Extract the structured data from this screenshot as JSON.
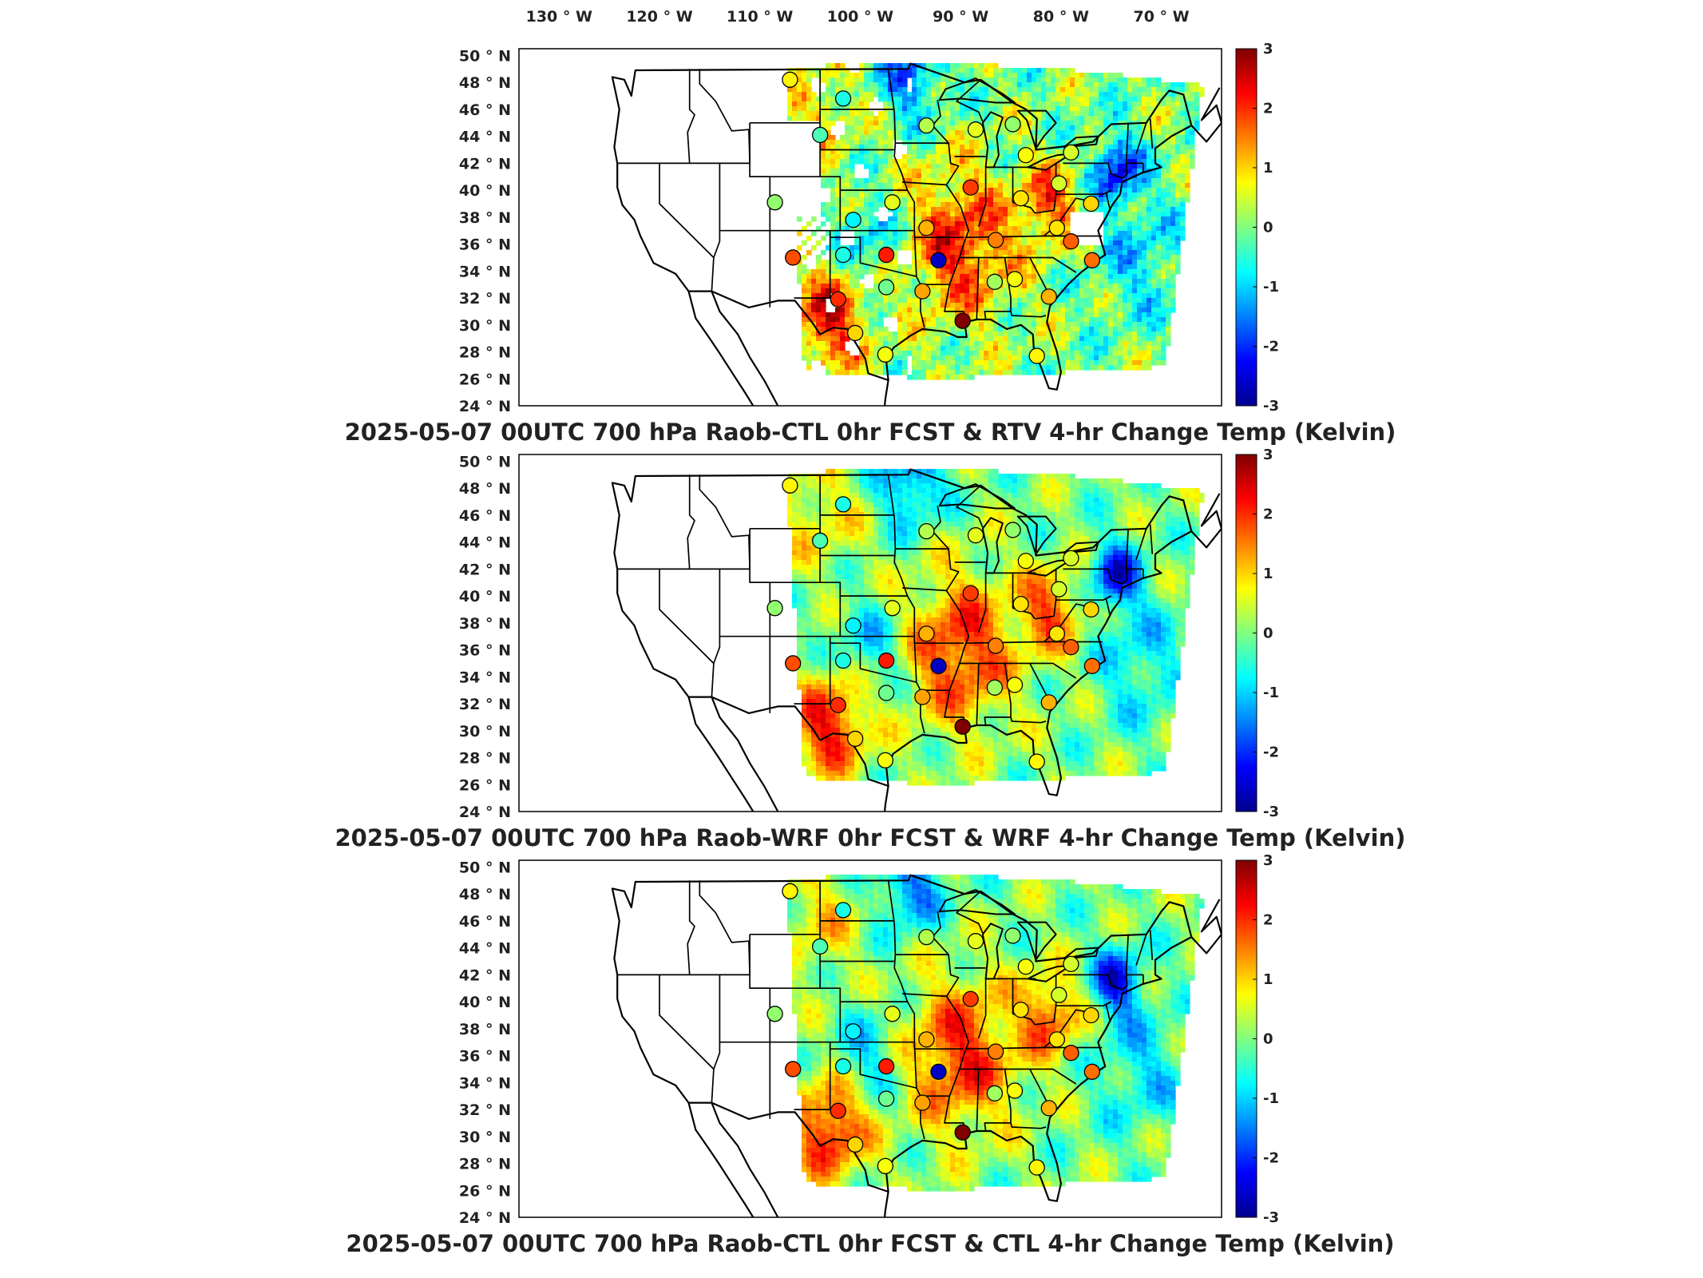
{
  "lon_labels": [
    "130",
    "120",
    "110",
    "100",
    "90",
    "80",
    "70"
  ],
  "lon_suffix": "W",
  "lat_labels": [
    "50",
    "48",
    "46",
    "44",
    "42",
    "40",
    "38",
    "36",
    "34",
    "32",
    "30",
    "28",
    "26",
    "24"
  ],
  "lat_suffix": "N",
  "degree_symbol": "°",
  "colorbar": {
    "ticks": [
      "3",
      "2",
      "1",
      "0",
      "-1",
      "-2",
      "-3"
    ],
    "colormap": "jet",
    "min": -3,
    "max": 3
  },
  "panels": [
    {
      "title": "2025-05-07 00UTC 700 hPa Raob-CTL 0hr FCST & RTV 4-hr Change Temp (Kelvin)",
      "field": "RTV 4-hr change (retrieval, with data gaps)"
    },
    {
      "title": "2025-05-07 00UTC 700 hPa Raob-WRF 0hr FCST & WRF 4-hr Change Temp (Kelvin)",
      "field": "WRF 4-hr change"
    },
    {
      "title": "2025-05-07 00UTC 700 hPa Raob-CTL 0hr FCST & CTL 4-hr Change Temp (Kelvin)",
      "field": "CTL 4-hr change"
    }
  ],
  "stations": [
    {
      "lon": -107.0,
      "lat": 48.2,
      "v": 0.8
    },
    {
      "lon": -101.7,
      "lat": 46.8,
      "v": -0.6
    },
    {
      "lon": -104.0,
      "lat": 44.1,
      "v": -0.3
    },
    {
      "lon": -93.4,
      "lat": 44.8,
      "v": 0.3
    },
    {
      "lon": -88.5,
      "lat": 44.5,
      "v": 0.6
    },
    {
      "lon": -84.8,
      "lat": 44.9,
      "v": 0.1
    },
    {
      "lon": -83.5,
      "lat": 42.6,
      "v": 0.7
    },
    {
      "lon": -79.0,
      "lat": 42.8,
      "v": 0.5
    },
    {
      "lon": -108.5,
      "lat": 39.1,
      "v": 0.1
    },
    {
      "lon": -100.7,
      "lat": 37.8,
      "v": -0.8
    },
    {
      "lon": -96.8,
      "lat": 39.1,
      "v": 0.6
    },
    {
      "lon": -89.0,
      "lat": 40.2,
      "v": 1.9
    },
    {
      "lon": -84.0,
      "lat": 39.4,
      "v": 0.9
    },
    {
      "lon": -80.2,
      "lat": 40.5,
      "v": 0.5
    },
    {
      "lon": -93.4,
      "lat": 37.2,
      "v": 1.2
    },
    {
      "lon": -86.5,
      "lat": 36.3,
      "v": 1.5
    },
    {
      "lon": -80.4,
      "lat": 37.2,
      "v": 0.9
    },
    {
      "lon": -77.0,
      "lat": 39.0,
      "v": 1.0
    },
    {
      "lon": -79.0,
      "lat": 36.2,
      "v": 1.7
    },
    {
      "lon": -106.7,
      "lat": 35.0,
      "v": 1.8
    },
    {
      "lon": -101.7,
      "lat": 35.2,
      "v": -0.6
    },
    {
      "lon": -97.4,
      "lat": 35.2,
      "v": 2.1
    },
    {
      "lon": -92.2,
      "lat": 34.8,
      "v": -2.6
    },
    {
      "lon": -97.4,
      "lat": 32.8,
      "v": -0.1
    },
    {
      "lon": -93.8,
      "lat": 32.5,
      "v": 1.3
    },
    {
      "lon": -102.2,
      "lat": 31.9,
      "v": 2.0
    },
    {
      "lon": -100.5,
      "lat": 29.4,
      "v": 1.0
    },
    {
      "lon": -97.5,
      "lat": 27.8,
      "v": 0.7
    },
    {
      "lon": -89.8,
      "lat": 30.3,
      "v": 3.0
    },
    {
      "lon": -86.6,
      "lat": 33.2,
      "v": 0.2
    },
    {
      "lon": -84.6,
      "lat": 33.4,
      "v": 0.7
    },
    {
      "lon": -81.2,
      "lat": 32.1,
      "v": 1.2
    },
    {
      "lon": -82.4,
      "lat": 27.7,
      "v": 0.8
    },
    {
      "lon": -76.9,
      "lat": 34.8,
      "v": 1.6
    }
  ]
}
